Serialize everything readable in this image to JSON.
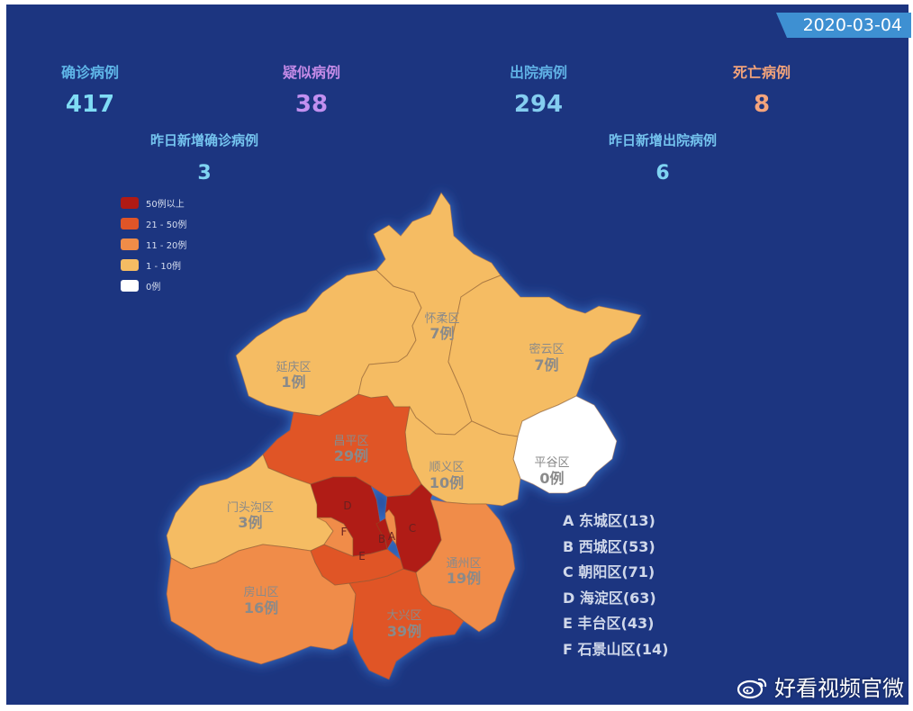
{
  "date": "2020-03-04",
  "stats": {
    "confirmed": {
      "label": "确诊病例",
      "value": "417"
    },
    "suspected": {
      "label": "疑似病例",
      "value": "38"
    },
    "discharged": {
      "label": "出院病例",
      "value": "294"
    },
    "deaths": {
      "label": "死亡病例",
      "value": "8"
    },
    "new_confirmed": {
      "label": "昨日新增确诊病例",
      "value": "3"
    },
    "new_discharged": {
      "label": "昨日新增出院病例",
      "value": "6"
    }
  },
  "legend": [
    {
      "label": "50例以上",
      "color": "#b01a14"
    },
    {
      "label": "21 - 50例",
      "color": "#e05528"
    },
    {
      "label": "11 - 20例",
      "color": "#f08c48"
    },
    {
      "label": "1 - 10例",
      "color": "#f5bc63"
    },
    {
      "label": "0例",
      "color": "#ffffff"
    }
  ],
  "districts": {
    "yanqing": {
      "name": "延庆区",
      "count": "1例",
      "cases": 1
    },
    "huairou": {
      "name": "怀柔区",
      "count": "7例",
      "cases": 7
    },
    "miyun": {
      "name": "密云区",
      "count": "7例",
      "cases": 7
    },
    "pinggu": {
      "name": "平谷区",
      "count": "0例",
      "cases": 0
    },
    "changping": {
      "name": "昌平区",
      "count": "29例",
      "cases": 29
    },
    "shunyi": {
      "name": "顺义区",
      "count": "10例",
      "cases": 10
    },
    "mentougou": {
      "name": "门头沟区",
      "count": "3例",
      "cases": 3
    },
    "fangshan": {
      "name": "房山区",
      "count": "16例",
      "cases": 16
    },
    "daxing": {
      "name": "大兴区",
      "count": "39例",
      "cases": 39
    },
    "tongzhou": {
      "name": "通州区",
      "count": "19例",
      "cases": 19
    },
    "dongcheng": {
      "letter": "A",
      "cases": 13
    },
    "xicheng": {
      "letter": "B",
      "cases": 53
    },
    "chaoyang": {
      "letter": "C",
      "cases": 71
    },
    "haidian": {
      "letter": "D",
      "cases": 63
    },
    "fengtai": {
      "letter": "E",
      "cases": 43
    },
    "shijingshan": {
      "letter": "F",
      "cases": 14
    }
  },
  "notes": [
    "A 东城区(13)",
    "B 西城区(53)",
    "C 朝阳区(71)",
    "D 海淀区(63)",
    "E 丰台区(43)",
    "F 石景山区(14)"
  ],
  "watermark": "好看视频官微",
  "colors": {
    "background": "#1c3580",
    "date_tab": "#3e90d2",
    "glow": "#3d7fd8"
  }
}
